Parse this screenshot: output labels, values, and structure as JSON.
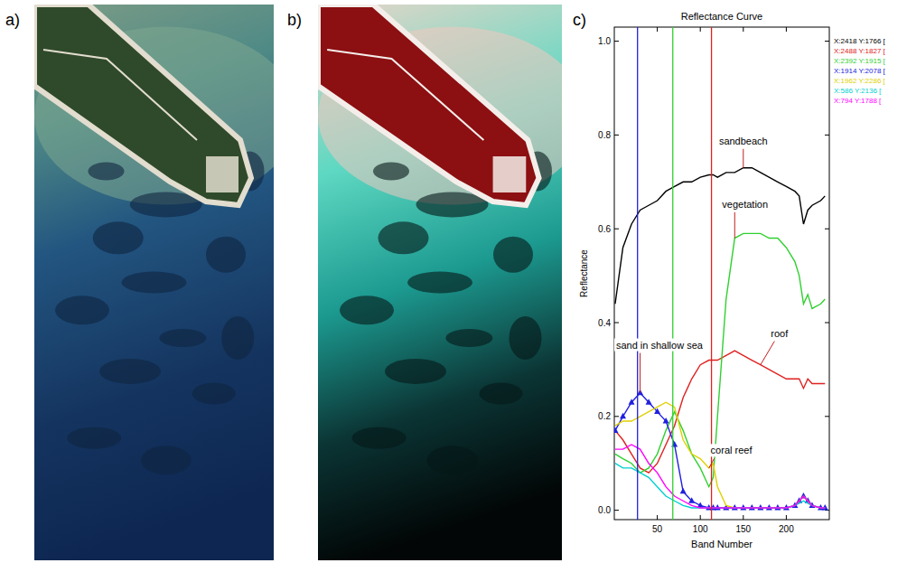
{
  "panel_labels": [
    "a)",
    "b)",
    "c)"
  ],
  "chart_data": {
    "type": "line",
    "title": "Reflectance Curve",
    "x_label": "Band Number",
    "y_label": "Reflectance",
    "x": [
      1,
      10,
      20,
      30,
      40,
      50,
      60,
      70,
      80,
      90,
      100,
      110,
      115,
      120,
      130,
      140,
      150,
      160,
      170,
      180,
      190,
      200,
      210,
      215,
      220,
      225,
      230,
      240,
      245
    ],
    "series": [
      {
        "name": "X:2418 Y:1766 [",
        "color": "#000000",
        "line_style": "solid",
        "values": [
          0.44,
          0.56,
          0.61,
          0.64,
          0.65,
          0.66,
          0.68,
          0.69,
          0.7,
          0.7,
          0.71,
          0.715,
          0.715,
          0.71,
          0.72,
          0.72,
          0.73,
          0.73,
          0.72,
          0.71,
          0.7,
          0.69,
          0.68,
          0.67,
          0.61,
          0.64,
          0.65,
          0.66,
          0.67
        ]
      },
      {
        "name": "X:2488 Y:1827 [",
        "color": "#e02020",
        "line_style": "solid",
        "values": [
          0.17,
          0.15,
          0.12,
          0.09,
          0.08,
          0.1,
          0.14,
          0.18,
          0.24,
          0.28,
          0.31,
          0.32,
          0.32,
          0.32,
          0.33,
          0.34,
          0.33,
          0.32,
          0.31,
          0.3,
          0.29,
          0.28,
          0.28,
          0.28,
          0.26,
          0.28,
          0.27,
          0.27,
          0.27
        ]
      },
      {
        "name": "X:2392 Y:1915 [",
        "color": "#30d030",
        "line_style": "solid",
        "values": [
          0.12,
          0.11,
          0.1,
          0.08,
          0.09,
          0.12,
          0.17,
          0.21,
          0.17,
          0.12,
          0.09,
          0.05,
          0.07,
          0.2,
          0.45,
          0.58,
          0.59,
          0.59,
          0.59,
          0.58,
          0.58,
          0.56,
          0.53,
          0.5,
          0.44,
          0.46,
          0.43,
          0.44,
          0.45
        ]
      },
      {
        "name": "X:1914 Y:2078 [",
        "color": "#2020e0",
        "line_style": "solid",
        "marker": "triangle",
        "values": [
          0.17,
          0.2,
          0.23,
          0.25,
          0.23,
          0.21,
          0.19,
          0.14,
          0.04,
          0.02,
          0.01,
          0.005,
          0.005,
          0.005,
          0.005,
          0.005,
          0.005,
          0.005,
          0.005,
          0.005,
          0.005,
          0.005,
          0.01,
          0.02,
          0.03,
          0.02,
          0.01,
          0.005,
          0.005
        ]
      },
      {
        "name": "X:1962 Y:2286 [",
        "color": "#e0d000",
        "line_style": "solid",
        "values": [
          0.18,
          0.19,
          0.19,
          0.2,
          0.21,
          0.22,
          0.23,
          0.22,
          0.15,
          0.12,
          0.11,
          0.09,
          0.1,
          0.05,
          0.01,
          0.005,
          0.005,
          0.005,
          0.005,
          0.005,
          0.005,
          0.005,
          0.01,
          0.02,
          0.03,
          0.02,
          0.01,
          0.005,
          0.005
        ]
      },
      {
        "name": "X:586 Y:2136 [",
        "color": "#00d0d0",
        "line_style": "solid",
        "values": [
          0.1,
          0.09,
          0.09,
          0.08,
          0.07,
          0.05,
          0.03,
          0.02,
          0.01,
          0.005,
          0.005,
          0.005,
          0.005,
          0.005,
          0.005,
          0.005,
          0.005,
          0.005,
          0.005,
          0.005,
          0.005,
          0.005,
          0.01,
          0.015,
          0.02,
          0.015,
          0.01,
          0.005,
          0.005
        ]
      },
      {
        "name": "X:794 Y:1788 [",
        "color": "#ff00ff",
        "line_style": "solid",
        "values": [
          0.13,
          0.13,
          0.14,
          0.13,
          0.1,
          0.08,
          0.05,
          0.03,
          0.02,
          0.01,
          0.005,
          0.005,
          0.005,
          0.005,
          0.005,
          0.005,
          0.005,
          0.005,
          0.005,
          0.005,
          0.005,
          0.005,
          0.01,
          0.02,
          0.03,
          0.02,
          0.01,
          0.005,
          0.005
        ]
      }
    ],
    "vlines": [
      {
        "x": 27,
        "color": "#2020e0"
      },
      {
        "x": 68,
        "color": "#30d030"
      },
      {
        "x": 113,
        "color": "#e02020"
      }
    ],
    "annotations": [
      "sandbeach",
      "vegetation",
      "roof",
      "sand in shallow sea",
      "coral reef"
    ],
    "xlim": [
      0,
      250
    ],
    "xticks": [
      50,
      100,
      150,
      200
    ],
    "ylim": [
      -0.02,
      1.03
    ],
    "yticks": [
      {
        "value": 0,
        "label": "0.0"
      },
      0.2,
      0.4,
      0.6,
      0.8,
      {
        "value": 1,
        "label": "1.0"
      }
    ],
    "grid": false,
    "legend": "right"
  }
}
